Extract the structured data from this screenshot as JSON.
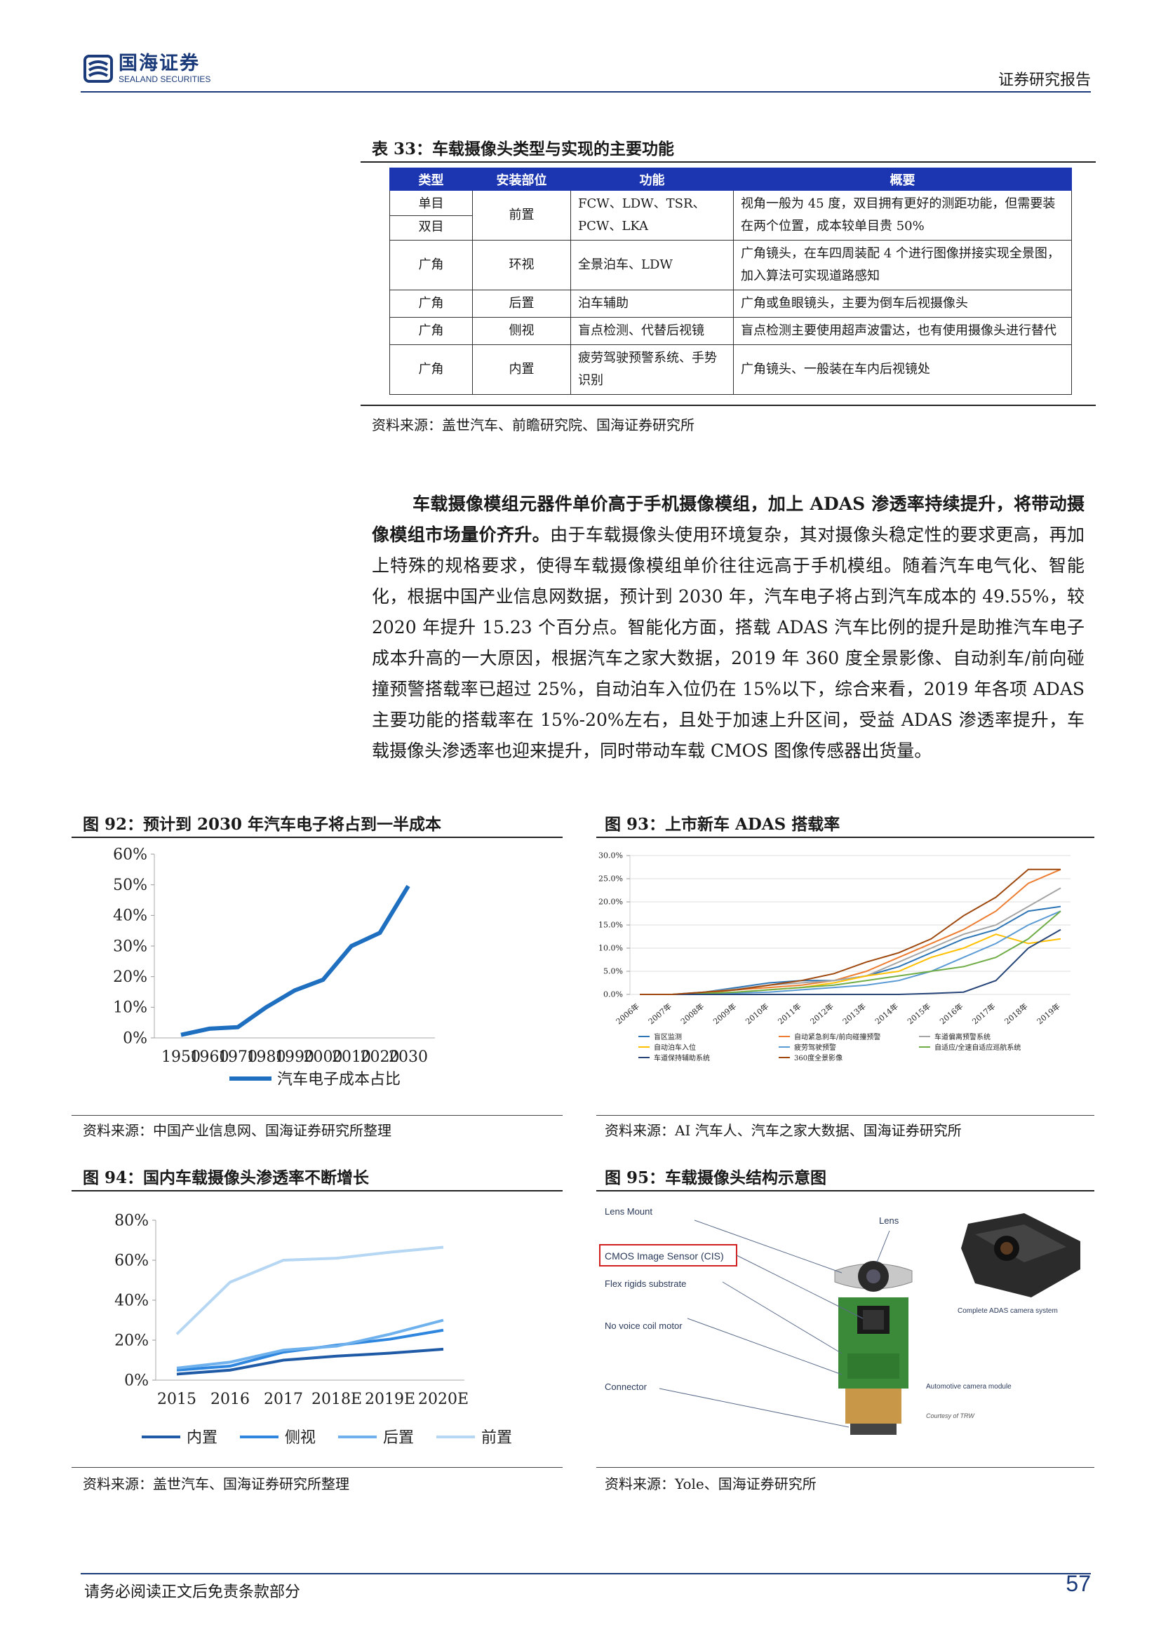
{
  "header": {
    "logo_cn": "国海证券",
    "logo_en": "SEALAND SECURITIES",
    "report_type": "证券研究报告"
  },
  "table33": {
    "title": "表 33：车载摄像头类型与实现的主要功能",
    "headers": [
      "类型",
      "安装部位",
      "功能",
      "概要"
    ],
    "rows": [
      {
        "type": "单目",
        "type2": "双目",
        "location": "前置",
        "function": "FCW、LDW、TSR、PCW、LKA",
        "summary": "视角一般为 45 度，双目拥有更好的测距功能，但需要装在两个位置，成本较单目贵 50%"
      },
      {
        "type": "广角",
        "location": "环视",
        "function": "全景泊车、LDW",
        "summary": "广角镜头，在车四周装配 4 个进行图像拼接实现全景图，加入算法可实现道路感知"
      },
      {
        "type": "广角",
        "location": "后置",
        "function": "泊车辅助",
        "summary": "广角或鱼眼镜头，主要为倒车后视摄像头"
      },
      {
        "type": "广角",
        "location": "侧视",
        "function": "盲点检测、代替后视镜",
        "summary": "盲点检测主要使用超声波雷达，也有使用摄像头进行替代"
      },
      {
        "type": "广角",
        "location": "内置",
        "function": "疲劳驾驶预警系统、手势识别",
        "summary": "广角镜头、一般装在车内后视镜处"
      }
    ],
    "source": "资料来源：盖世汽车、前瞻研究院、国海证券研究所"
  },
  "paragraph": {
    "bold": "车载摄像模组元器件单价高于手机摄像模组，加上 ADAS 渗透率持续提升，将带动摄像模组市场量价齐升。",
    "body": "由于车载摄像头使用环境复杂，其对摄像头稳定性的要求更高，再加上特殊的规格要求，使得车载摄像模组单价往往远高于手机模组。随着汽车电气化、智能化，根据中国产业信息网数据，预计到 2030 年，汽车电子将占到汽车成本的 49.55%，较 2020 年提升 15.23 个百分点。智能化方面，搭载 ADAS 汽车比例的提升是助推汽车电子成本升高的一大原因，根据汽车之家大数据，2019 年 360 度全景影像、自动刹车/前向碰撞预警搭载率已超过 25%，自动泊车入位仍在 15%以下，综合来看，2019 年各项 ADAS 主要功能的搭载率在 15%-20%左右，且处于加速上升区间，受益 ADAS 渗透率提升，车载摄像头渗透率也迎来提升，同时带动车载 CMOS 图像传感器出货量。"
  },
  "fig92": {
    "title": "图 92：预计到 2030 年汽车电子将占到一半成本",
    "source": "资料来源：中国产业信息网、国海证券研究所整理"
  },
  "fig93": {
    "title": "图 93：上市新车 ADAS 搭载率",
    "source": "资料来源：AI 汽车人、汽车之家大数据、国海证券研究所"
  },
  "fig94": {
    "title": "图 94：国内车载摄像头渗透率不断增长",
    "source": "资料来源：盖世汽车、国海证券研究所整理"
  },
  "fig95": {
    "title": "图 95：车载摄像头结构示意图",
    "source": "资料来源：Yole、国海证券研究所",
    "labels": {
      "lens_mount": "Lens Mount",
      "lens": "Lens",
      "cmos": "CMOS Image Sensor (CIS)",
      "flex": "Flex rigids substrate",
      "no_voice": "No voice coil motor",
      "connector": "Connector",
      "complete": "Complete ADAS camera system",
      "module": "Automotive camera module",
      "courtesy": "Courtesy of TRW"
    }
  },
  "chart_data": [
    {
      "type": "line",
      "x": [
        "1950",
        "1960",
        "1970",
        "1980",
        "1990",
        "2000",
        "2010",
        "2020",
        "2030"
      ],
      "series": [
        {
          "name": "汽车电子成本占比",
          "values": [
            1,
            3,
            3.5,
            10,
            15.5,
            19,
            30,
            34.3,
            49.6
          ]
        }
      ],
      "ylim": [
        0,
        60
      ],
      "yticks": [
        "0%",
        "10%",
        "20%",
        "30%",
        "40%",
        "50%",
        "60%"
      ],
      "color": "#1f6fc0",
      "grid": false,
      "legend": "bottom"
    },
    {
      "type": "line",
      "x": [
        "2006年",
        "2007年",
        "2008年",
        "2009年",
        "2010年",
        "2011年",
        "2012年",
        "2013年",
        "2014年",
        "2015年",
        "2016年",
        "2017年",
        "2018年",
        "2019年"
      ],
      "ylim": [
        0,
        30
      ],
      "yticks": [
        "0.0%",
        "5.0%",
        "10.0%",
        "15.0%",
        "20.0%",
        "25.0%",
        "30.0%"
      ],
      "legend": "bottom",
      "series": [
        {
          "name": "盲区监测",
          "color": "#2e75b6",
          "values": [
            0,
            0,
            0.5,
            1.5,
            2.5,
            3,
            3,
            4,
            6,
            9,
            12,
            14,
            18,
            19
          ]
        },
        {
          "name": "自动紧急刹车/前向碰撞预警",
          "color": "#ed7d31",
          "values": [
            0,
            0,
            0.3,
            1,
            1.5,
            2,
            3,
            5,
            8,
            11,
            14,
            18,
            24,
            27
          ]
        },
        {
          "name": "车道偏离预警系统",
          "color": "#a5a5a5",
          "values": [
            0,
            0,
            0.5,
            1.2,
            2,
            2.5,
            3,
            4,
            7,
            10,
            13,
            15,
            19,
            23
          ]
        },
        {
          "name": "自动泊车入位",
          "color": "#ffc000",
          "values": [
            0,
            0,
            0.2,
            0.5,
            1,
            1.5,
            2.5,
            4,
            5,
            8,
            10,
            13,
            11,
            12
          ]
        },
        {
          "name": "疲劳驾驶预警",
          "color": "#5b9bd5",
          "values": [
            0,
            0,
            0,
            0.3,
            0.5,
            1,
            1.5,
            2,
            3,
            5,
            8,
            11,
            15,
            18
          ]
        },
        {
          "name": "自适应/全速自适应巡航系统",
          "color": "#70ad47",
          "values": [
            0,
            0,
            0.2,
            0.5,
            1,
            1.5,
            2,
            3,
            4,
            5,
            6,
            8,
            12,
            18
          ]
        },
        {
          "name": "车道保持辅助系统",
          "color": "#264478",
          "values": [
            0,
            0,
            0,
            0,
            0,
            0,
            0,
            0,
            0,
            0.2,
            0.5,
            3,
            10,
            14
          ]
        },
        {
          "name": "360度全景影像",
          "color": "#9e480e",
          "values": [
            0,
            0,
            0.5,
            1,
            2,
            3,
            4.5,
            7,
            9,
            12,
            17,
            21,
            27,
            27
          ]
        }
      ]
    },
    {
      "type": "line",
      "x": [
        "2015",
        "2016",
        "2017",
        "2018E",
        "2019E",
        "2020E"
      ],
      "ylim": [
        0,
        80
      ],
      "yticks": [
        "0%",
        "20%",
        "40%",
        "60%",
        "80%"
      ],
      "grid": false,
      "legend": "bottom",
      "series": [
        {
          "name": "内置",
          "color": "#1f5aa6",
          "values": [
            3,
            5,
            10,
            12,
            13.5,
            15.5
          ]
        },
        {
          "name": "侧视",
          "color": "#2e86de",
          "values": [
            5,
            7,
            14,
            17.5,
            20.5,
            25
          ]
        },
        {
          "name": "后置",
          "color": "#6fb1ec",
          "values": [
            6,
            9,
            15,
            17,
            23,
            30
          ]
        },
        {
          "name": "前置",
          "color": "#b6d7f3",
          "values": [
            23,
            49,
            60,
            61,
            64,
            66.5
          ]
        }
      ]
    }
  ]
}
